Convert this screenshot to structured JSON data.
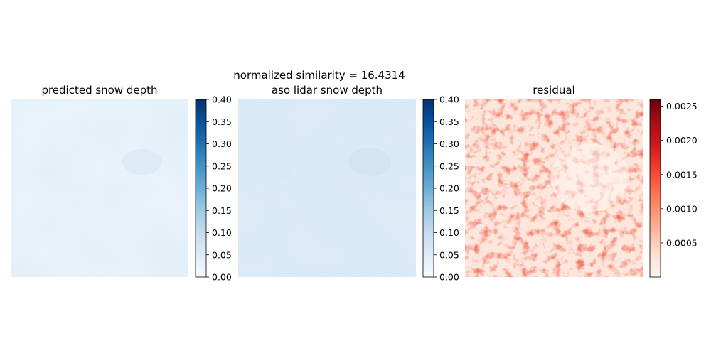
{
  "figure": {
    "suptitle": "normalized similarity = 16.4314"
  },
  "chart_data": [
    {
      "type": "heatmap",
      "title": "predicted snow depth",
      "colormap": "Blues",
      "colorbar": {
        "range": [
          0,
          0.4
        ],
        "ticks": [
          "0.00",
          "0.05",
          "0.10",
          "0.15",
          "0.20",
          "0.25",
          "0.30",
          "0.35",
          "0.40"
        ]
      },
      "typical_value": 0.035,
      "axes_visible": false
    },
    {
      "type": "heatmap",
      "title": "aso lidar snow depth",
      "colormap": "Blues",
      "colorbar": {
        "range": [
          0,
          0.4
        ],
        "ticks": [
          "0.00",
          "0.05",
          "0.10",
          "0.15",
          "0.20",
          "0.25",
          "0.30",
          "0.35",
          "0.40"
        ]
      },
      "typical_value": 0.05,
      "axes_visible": false
    },
    {
      "type": "heatmap",
      "title": "residual",
      "colormap": "Reds",
      "colorbar": {
        "range": [
          0,
          0.0026
        ],
        "ticks": [
          "0.0005",
          "0.0010",
          "0.0015",
          "0.0020",
          "0.0025"
        ]
      },
      "typical_value": 0.0004,
      "axes_visible": false
    }
  ]
}
